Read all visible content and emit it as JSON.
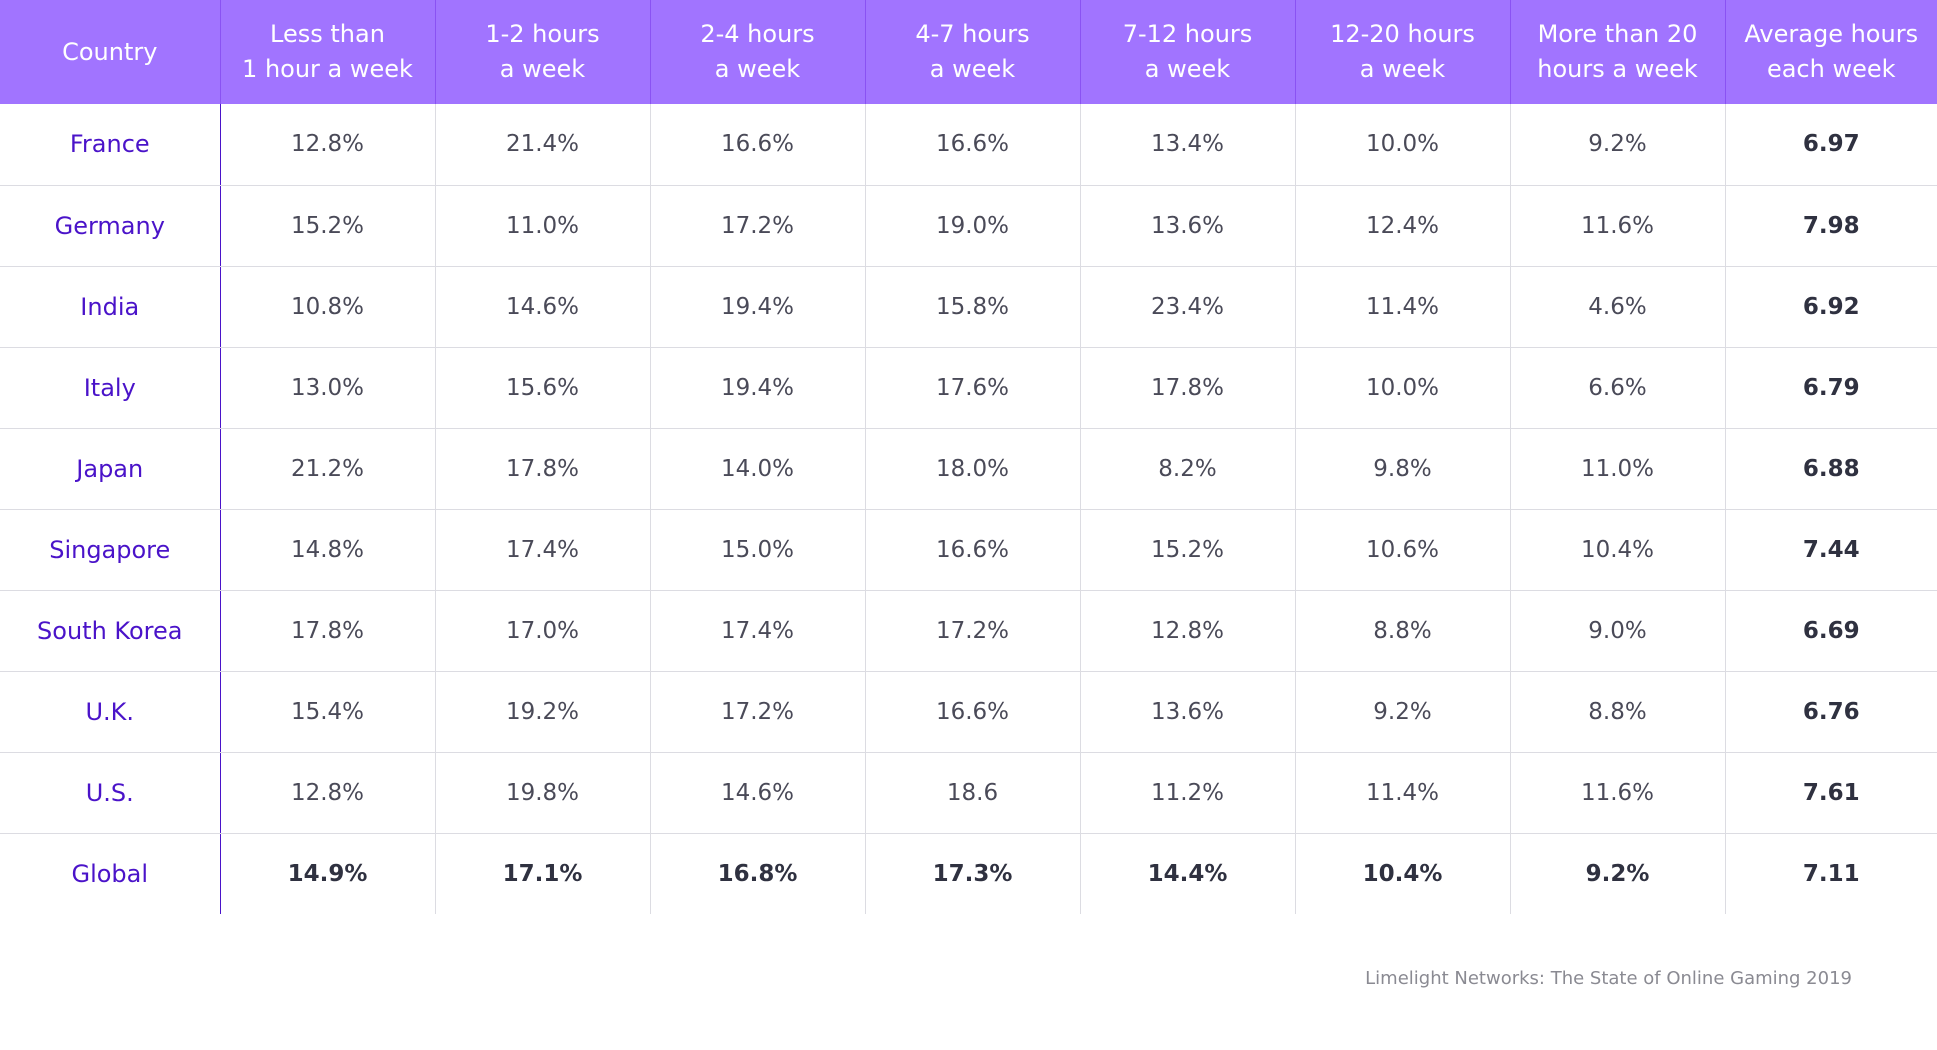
{
  "chart_data": {
    "type": "table",
    "columns": [
      [
        "Country"
      ],
      [
        "Less than",
        "1 hour a week"
      ],
      [
        "1-2 hours",
        "a week"
      ],
      [
        "2-4 hours",
        "a week"
      ],
      [
        "4-7 hours",
        "a week"
      ],
      [
        "7-12 hours",
        "a week"
      ],
      [
        "12-20 hours",
        "a week"
      ],
      [
        "More than 20",
        "hours a week"
      ],
      [
        "Average hours",
        "each week"
      ]
    ],
    "rows": [
      {
        "country": "France",
        "values": [
          "12.8%",
          "21.4%",
          "16.6%",
          "16.6%",
          "13.4%",
          "10.0%",
          "9.2%"
        ],
        "average": "6.97"
      },
      {
        "country": "Germany",
        "values": [
          "15.2%",
          "11.0%",
          "17.2%",
          "19.0%",
          "13.6%",
          "12.4%",
          "11.6%"
        ],
        "average": "7.98"
      },
      {
        "country": "India",
        "values": [
          "10.8%",
          "14.6%",
          "19.4%",
          "15.8%",
          "23.4%",
          "11.4%",
          "4.6%"
        ],
        "average": "6.92"
      },
      {
        "country": "Italy",
        "values": [
          "13.0%",
          "15.6%",
          "19.4%",
          "17.6%",
          "17.8%",
          "10.0%",
          "6.6%"
        ],
        "average": "6.79"
      },
      {
        "country": "Japan",
        "values": [
          "21.2%",
          "17.8%",
          "14.0%",
          "18.0%",
          "8.2%",
          "9.8%",
          "11.0%"
        ],
        "average": "6.88"
      },
      {
        "country": "Singapore",
        "values": [
          "14.8%",
          "17.4%",
          "15.0%",
          "16.6%",
          "15.2%",
          "10.6%",
          "10.4%"
        ],
        "average": "7.44"
      },
      {
        "country": "South Korea",
        "values": [
          "17.8%",
          "17.0%",
          "17.4%",
          "17.2%",
          "12.8%",
          "8.8%",
          "9.0%"
        ],
        "average": "6.69"
      },
      {
        "country": "U.K.",
        "values": [
          "15.4%",
          "19.2%",
          "17.2%",
          "16.6%",
          "13.6%",
          "9.2%",
          "8.8%"
        ],
        "average": "6.76"
      },
      {
        "country": "U.S.",
        "values": [
          "12.8%",
          "19.8%",
          "14.6%",
          "18.6",
          "11.2%",
          "11.4%",
          "11.6%"
        ],
        "average": "7.61"
      },
      {
        "country": "Global",
        "values": [
          "14.9%",
          "17.1%",
          "16.8%",
          "17.3%",
          "14.4%",
          "10.4%",
          "9.2%"
        ],
        "average": "7.11",
        "is_total": true
      }
    ],
    "source": "Limelight Networks: The State of Online Gaming 2019"
  },
  "colors": {
    "header_bg": "#a174ff",
    "header_text": "#ffffff",
    "country_text": "#4a13c9",
    "value_text": "#4a4a58",
    "bold_text": "#2f3140",
    "grid": "#dcdce2",
    "source_text": "#8a8a92"
  }
}
